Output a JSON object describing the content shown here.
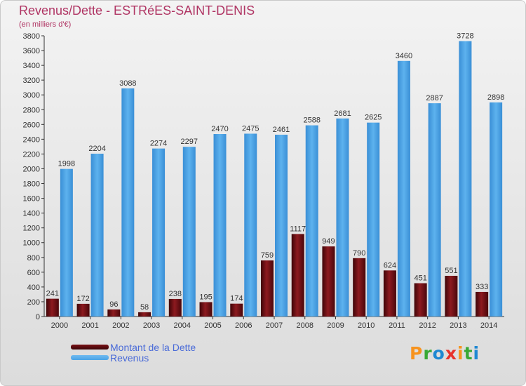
{
  "title": "Revenus/Dette - ESTRéES-SAINT-DENIS",
  "subtitle": "(en milliers d'€)",
  "brand": {
    "letters": [
      "P",
      "r",
      "o",
      "x",
      "i",
      "t",
      "i"
    ],
    "colors": [
      "#f7931e",
      "#39a935",
      "#1e88d2",
      "#e8322b",
      "#f7931e",
      "#39a935",
      "#1e88d2"
    ]
  },
  "legend": [
    {
      "name": "Montant de la Dette",
      "color": "#7a1015"
    },
    {
      "name": "Revenus",
      "color": "#4aa3e6"
    }
  ],
  "chart_data": {
    "type": "bar",
    "categories": [
      "2000",
      "2001",
      "2002",
      "2003",
      "2004",
      "2005",
      "2006",
      "2007",
      "2008",
      "2009",
      "2010",
      "2011",
      "2012",
      "2013",
      "2014"
    ],
    "series": [
      {
        "name": "Montant de la Dette",
        "color": "#7a1015",
        "values": [
          241,
          172,
          96,
          58,
          238,
          195,
          174,
          759,
          1117,
          949,
          790,
          624,
          451,
          551,
          333
        ]
      },
      {
        "name": "Revenus",
        "color": "#4aa3e6",
        "values": [
          1998,
          2204,
          3088,
          2274,
          2297,
          2470,
          2475,
          2461,
          2588,
          2681,
          2625,
          3460,
          2887,
          3728,
          2898
        ]
      }
    ],
    "ylim": [
      0,
      3800
    ],
    "yticks": [
      0,
      200,
      400,
      600,
      800,
      1000,
      1200,
      1400,
      1600,
      1800,
      2000,
      2200,
      2400,
      2600,
      2800,
      3000,
      3200,
      3400,
      3600,
      3800
    ],
    "grid": false,
    "legend_position": "bottom-left"
  }
}
